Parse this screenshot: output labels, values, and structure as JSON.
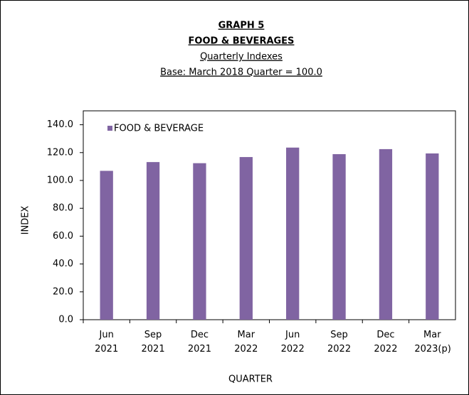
{
  "chart_data": {
    "type": "bar",
    "title": "GRAPH 5",
    "subtitle": [
      "FOOD & BEVERAGES",
      "Quarterly Indexes",
      "Base: March 2018 Quarter = 100.0"
    ],
    "xlabel": "QUARTER",
    "ylabel": "INDEX",
    "series": [
      {
        "name": "FOOD & BEVERAGE",
        "color": "#8064a2",
        "values": [
          106.9,
          113.2,
          112.4,
          116.8,
          123.6,
          118.9,
          122.5,
          119.4
        ]
      }
    ],
    "categories": [
      "Jun 2021",
      "Sep 2021",
      "Dec 2021",
      "Mar 2022",
      "Jun 2022",
      "Sep 2022",
      "Dec 2022",
      "Mar 2023(p)"
    ],
    "ylim": [
      0,
      150
    ],
    "yticks": [
      {
        "value": 0,
        "label": "0.0"
      },
      {
        "value": 20,
        "label": "20.0"
      },
      {
        "value": 40,
        "label": "40.0"
      },
      {
        "value": 60,
        "label": "60.0"
      },
      {
        "value": 80,
        "label": "80.0"
      },
      {
        "value": 100,
        "label": "100.0"
      },
      {
        "value": 120,
        "label": "120.0"
      },
      {
        "value": 140,
        "label": "140.0"
      }
    ],
    "legend": "top-left",
    "grid": false
  }
}
